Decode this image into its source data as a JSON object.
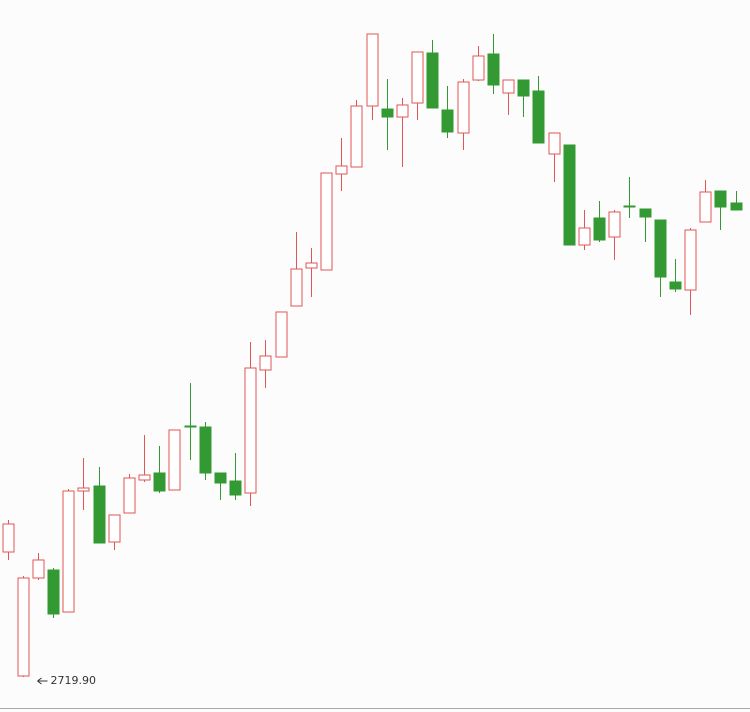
{
  "chart_data": {
    "type": "candlestick",
    "up_color": "#e05555",
    "down_color": "#339933",
    "ylim": [
      2713.9,
      2855.3
    ],
    "open": [
      2744.9,
      2720.1,
      2739.7,
      2741.3,
      2732.9,
      2757.1,
      2758.1,
      2746.9,
      2752.7,
      2759.3,
      2760.7,
      2757.3,
      2770.1,
      2769.9,
      2760.7,
      2759.1,
      2756.7,
      2781.3,
      2783.9,
      2794.1,
      2801.7,
      2801.3,
      2820.5,
      2821.9,
      2834.1,
      2833.5,
      2831.9,
      2834.7,
      2844.7,
      2833.3,
      2828.7,
      2839.3,
      2844.5,
      2836.7,
      2839.3,
      2837.1,
      2824.5,
      2826.3,
      2806.3,
      2811.7,
      2807.9,
      2814.1,
      2813.5,
      2811.3,
      2798.9,
      2797.3,
      2810.9,
      2817.1,
      2814.7
    ],
    "high": [
      2751.3,
      2740.1,
      2744.7,
      2741.7,
      2757.5,
      2763.7,
      2761.9,
      2752.3,
      2760.5,
      2768.3,
      2766.1,
      2769.3,
      2778.7,
      2770.9,
      2760.7,
      2764.7,
      2786.9,
      2787.3,
      2792.9,
      2808.9,
      2805.7,
      2820.7,
      2827.7,
      2835.3,
      2848.5,
      2839.5,
      2835.7,
      2844.9,
      2847.3,
      2838.1,
      2839.5,
      2846.1,
      2848.5,
      2839.3,
      2839.3,
      2840.1,
      2828.7,
      2826.3,
      2813.3,
      2815.1,
      2813.3,
      2819.9,
      2813.5,
      2811.3,
      2803.5,
      2809.7,
      2819.3,
      2817.1,
      2817.1
    ],
    "low": [
      2743.3,
      2719.9,
      2739.3,
      2731.7,
      2732.9,
      2753.3,
      2746.7,
      2745.3,
      2752.7,
      2758.9,
      2756.7,
      2757.3,
      2763.3,
      2759.3,
      2755.3,
      2755.3,
      2754.1,
      2777.7,
      2783.9,
      2794.1,
      2795.9,
      2801.3,
      2817.1,
      2821.9,
      2831.3,
      2825.3,
      2821.9,
      2831.3,
      2833.7,
      2827.7,
      2825.3,
      2839.1,
      2836.5,
      2832.3,
      2831.9,
      2826.7,
      2818.9,
      2806.3,
      2805.3,
      2806.9,
      2803.3,
      2811.7,
      2806.9,
      2795.9,
      2796.9,
      2792.3,
      2810.9,
      2809.3,
      2813.3
    ],
    "close": [
      2750.5,
      2739.7,
      2743.3,
      2732.5,
      2757.1,
      2757.7,
      2746.7,
      2752.3,
      2759.7,
      2760.3,
      2757.1,
      2769.3,
      2769.9,
      2760.7,
      2758.7,
      2756.3,
      2781.7,
      2784.1,
      2792.9,
      2801.5,
      2802.7,
      2820.7,
      2822.1,
      2834.1,
      2848.5,
      2831.9,
      2834.3,
      2844.9,
      2833.7,
      2828.9,
      2838.9,
      2844.1,
      2838.3,
      2839.3,
      2836.1,
      2826.7,
      2828.7,
      2806.3,
      2809.7,
      2807.3,
      2812.9,
      2813.9,
      2811.9,
      2799.9,
      2797.5,
      2809.3,
      2816.9,
      2813.9,
      2813.3
    ],
    "value_labels": [
      null,
      "2719.90",
      null,
      null,
      null,
      null,
      null,
      null,
      null,
      null,
      null,
      null,
      null,
      null,
      null,
      null,
      null,
      null,
      null,
      null,
      null,
      null,
      null,
      null,
      null,
      null,
      null,
      null,
      null,
      null,
      null,
      null,
      null,
      null,
      null,
      null,
      null,
      null,
      null,
      null,
      null,
      null,
      null,
      null,
      null,
      null,
      null,
      null,
      null
    ]
  }
}
